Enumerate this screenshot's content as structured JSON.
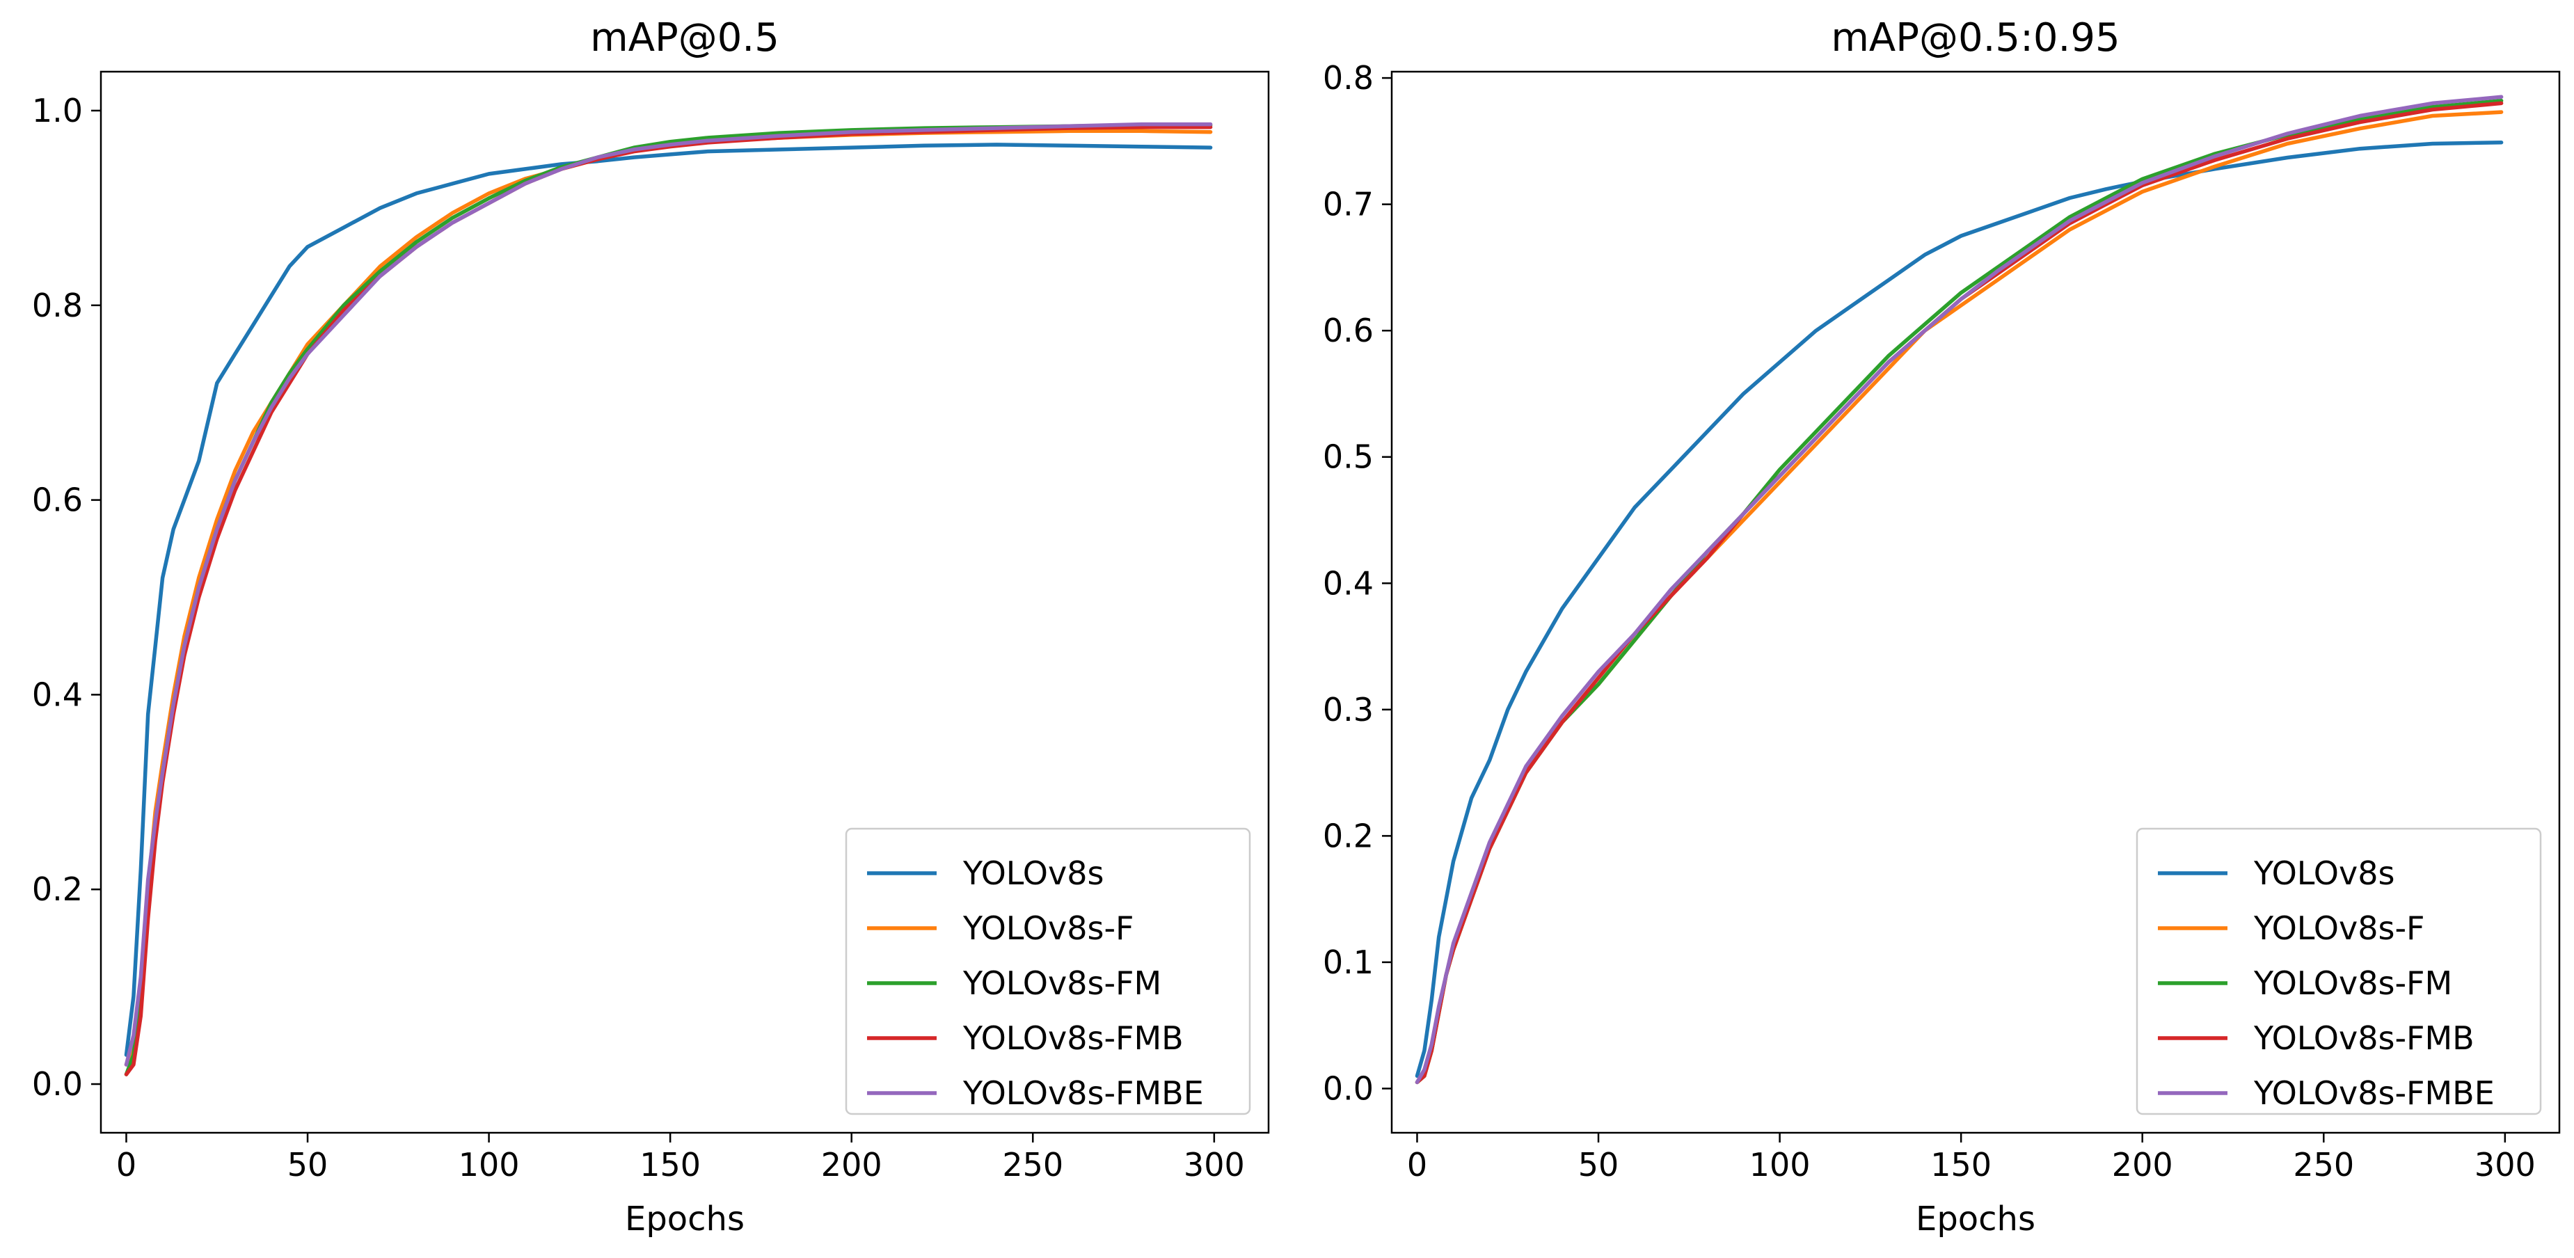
{
  "chart_data": [
    {
      "type": "line",
      "title": "mAP@0.5",
      "xlabel": "Epochs",
      "ylabel": "",
      "xlim": [
        -7,
        315
      ],
      "ylim": [
        -0.05,
        1.04
      ],
      "grid": false,
      "legend": "lower right",
      "xticks": [
        0,
        50,
        100,
        150,
        200,
        250,
        300
      ],
      "yticks": [
        0.0,
        0.2,
        0.4,
        0.6,
        0.8,
        1.0
      ],
      "xtick_labels": [
        "0",
        "50",
        "100",
        "150",
        "200",
        "250",
        "300"
      ],
      "ytick_labels": [
        "0.0",
        "0.2",
        "0.4",
        "0.6",
        "0.8",
        "1.0"
      ],
      "series": [
        {
          "name": "YOLOv8s",
          "color": "#1f77b4",
          "x": [
            0,
            2,
            4,
            6,
            8,
            10,
            13,
            16,
            20,
            25,
            30,
            35,
            40,
            45,
            50,
            60,
            70,
            80,
            90,
            100,
            110,
            120,
            130,
            140,
            150,
            160,
            180,
            200,
            220,
            240,
            260,
            280,
            299
          ],
          "y": [
            0.03,
            0.09,
            0.22,
            0.38,
            0.45,
            0.52,
            0.57,
            0.6,
            0.64,
            0.72,
            0.75,
            0.78,
            0.81,
            0.84,
            0.86,
            0.88,
            0.9,
            0.915,
            0.925,
            0.935,
            0.94,
            0.945,
            0.948,
            0.952,
            0.955,
            0.958,
            0.96,
            0.962,
            0.964,
            0.965,
            0.964,
            0.963,
            0.962
          ]
        },
        {
          "name": "YOLOv8s-F",
          "color": "#ff7f0e",
          "x": [
            0,
            2,
            4,
            6,
            8,
            10,
            13,
            16,
            20,
            25,
            30,
            35,
            40,
            45,
            50,
            60,
            70,
            80,
            90,
            100,
            110,
            120,
            130,
            140,
            150,
            160,
            180,
            200,
            220,
            240,
            260,
            280,
            299
          ],
          "y": [
            0.02,
            0.04,
            0.1,
            0.2,
            0.28,
            0.33,
            0.4,
            0.46,
            0.52,
            0.58,
            0.63,
            0.67,
            0.7,
            0.73,
            0.76,
            0.8,
            0.84,
            0.87,
            0.895,
            0.915,
            0.93,
            0.94,
            0.95,
            0.96,
            0.965,
            0.968,
            0.972,
            0.975,
            0.977,
            0.978,
            0.979,
            0.979,
            0.978
          ]
        },
        {
          "name": "YOLOv8s-FM",
          "color": "#2ca02c",
          "x": [
            0,
            2,
            4,
            6,
            8,
            10,
            13,
            16,
            20,
            25,
            30,
            35,
            40,
            45,
            50,
            60,
            70,
            80,
            90,
            100,
            110,
            120,
            130,
            140,
            150,
            160,
            180,
            200,
            220,
            240,
            260,
            280,
            299
          ],
          "y": [
            0.01,
            0.03,
            0.09,
            0.19,
            0.26,
            0.32,
            0.39,
            0.45,
            0.51,
            0.57,
            0.62,
            0.66,
            0.7,
            0.73,
            0.755,
            0.8,
            0.835,
            0.865,
            0.89,
            0.91,
            0.928,
            0.942,
            0.952,
            0.962,
            0.968,
            0.972,
            0.977,
            0.98,
            0.982,
            0.983,
            0.984,
            0.985,
            0.985
          ]
        },
        {
          "name": "YOLOv8s-FMB",
          "color": "#d62728",
          "x": [
            0,
            2,
            4,
            6,
            8,
            10,
            13,
            16,
            20,
            25,
            30,
            35,
            40,
            45,
            50,
            60,
            70,
            80,
            90,
            100,
            110,
            120,
            130,
            140,
            150,
            160,
            180,
            200,
            220,
            240,
            260,
            280,
            299
          ],
          "y": [
            0.01,
            0.02,
            0.07,
            0.17,
            0.25,
            0.31,
            0.38,
            0.44,
            0.5,
            0.56,
            0.61,
            0.65,
            0.69,
            0.72,
            0.75,
            0.795,
            0.83,
            0.86,
            0.885,
            0.905,
            0.925,
            0.94,
            0.95,
            0.958,
            0.963,
            0.967,
            0.972,
            0.976,
            0.978,
            0.98,
            0.982,
            0.983,
            0.983
          ]
        },
        {
          "name": "YOLOv8s-FMBE",
          "color": "#9467bd",
          "x": [
            0,
            2,
            4,
            6,
            8,
            10,
            13,
            16,
            20,
            25,
            30,
            35,
            40,
            45,
            50,
            60,
            70,
            80,
            90,
            100,
            110,
            120,
            130,
            140,
            150,
            160,
            180,
            200,
            220,
            240,
            260,
            280,
            299
          ],
          "y": [
            0.02,
            0.05,
            0.11,
            0.21,
            0.27,
            0.32,
            0.39,
            0.45,
            0.51,
            0.57,
            0.62,
            0.66,
            0.695,
            0.725,
            0.75,
            0.79,
            0.83,
            0.86,
            0.885,
            0.905,
            0.925,
            0.94,
            0.952,
            0.96,
            0.965,
            0.969,
            0.974,
            0.978,
            0.98,
            0.982,
            0.984,
            0.986,
            0.986
          ]
        }
      ]
    },
    {
      "type": "line",
      "title": "mAP@0.5:0.95",
      "xlabel": "Epochs",
      "ylabel": "",
      "xlim": [
        -7,
        315
      ],
      "ylim": [
        -0.035,
        0.805
      ],
      "grid": false,
      "legend": "lower right",
      "xticks": [
        0,
        50,
        100,
        150,
        200,
        250,
        300
      ],
      "yticks": [
        0.0,
        0.1,
        0.2,
        0.3,
        0.4,
        0.5,
        0.6,
        0.7,
        0.8
      ],
      "xtick_labels": [
        "0",
        "50",
        "100",
        "150",
        "200",
        "250",
        "300"
      ],
      "ytick_labels": [
        "0.0",
        "0.1",
        "0.2",
        "0.3",
        "0.4",
        "0.5",
        "0.6",
        "0.7",
        "0.8"
      ],
      "series": [
        {
          "name": "YOLOv8s",
          "color": "#1f77b4",
          "x": [
            0,
            2,
            4,
            6,
            8,
            10,
            15,
            20,
            25,
            30,
            40,
            50,
            60,
            70,
            80,
            90,
            100,
            110,
            120,
            130,
            140,
            150,
            160,
            170,
            180,
            190,
            200,
            220,
            240,
            260,
            280,
            299
          ],
          "y": [
            0.01,
            0.03,
            0.07,
            0.12,
            0.15,
            0.18,
            0.23,
            0.26,
            0.3,
            0.33,
            0.38,
            0.42,
            0.46,
            0.49,
            0.52,
            0.55,
            0.575,
            0.6,
            0.62,
            0.64,
            0.66,
            0.675,
            0.685,
            0.695,
            0.705,
            0.712,
            0.718,
            0.728,
            0.737,
            0.744,
            0.748,
            0.749
          ]
        },
        {
          "name": "YOLOv8s-F",
          "color": "#ff7f0e",
          "x": [
            0,
            2,
            4,
            6,
            8,
            10,
            15,
            20,
            25,
            30,
            40,
            50,
            60,
            70,
            80,
            90,
            100,
            110,
            120,
            130,
            140,
            150,
            160,
            170,
            180,
            190,
            200,
            220,
            240,
            260,
            280,
            299
          ],
          "y": [
            0.005,
            0.01,
            0.03,
            0.06,
            0.09,
            0.11,
            0.15,
            0.19,
            0.22,
            0.25,
            0.29,
            0.32,
            0.355,
            0.39,
            0.42,
            0.45,
            0.48,
            0.51,
            0.54,
            0.57,
            0.6,
            0.62,
            0.64,
            0.66,
            0.68,
            0.695,
            0.71,
            0.73,
            0.748,
            0.76,
            0.77,
            0.773
          ]
        },
        {
          "name": "YOLOv8s-FM",
          "color": "#2ca02c",
          "x": [
            0,
            2,
            4,
            6,
            8,
            10,
            15,
            20,
            25,
            30,
            40,
            50,
            60,
            70,
            80,
            90,
            100,
            110,
            120,
            130,
            140,
            150,
            160,
            170,
            180,
            190,
            200,
            220,
            240,
            260,
            280,
            299
          ],
          "y": [
            0.005,
            0.01,
            0.03,
            0.06,
            0.09,
            0.11,
            0.15,
            0.19,
            0.22,
            0.25,
            0.29,
            0.32,
            0.355,
            0.39,
            0.425,
            0.455,
            0.49,
            0.52,
            0.55,
            0.58,
            0.605,
            0.63,
            0.65,
            0.67,
            0.69,
            0.705,
            0.72,
            0.74,
            0.755,
            0.767,
            0.777,
            0.782
          ]
        },
        {
          "name": "YOLOv8s-FMB",
          "color": "#d62728",
          "x": [
            0,
            2,
            4,
            6,
            8,
            10,
            15,
            20,
            25,
            30,
            40,
            50,
            60,
            70,
            80,
            90,
            100,
            110,
            120,
            130,
            140,
            150,
            160,
            170,
            180,
            190,
            200,
            220,
            240,
            260,
            280,
            299
          ],
          "y": [
            0.005,
            0.01,
            0.03,
            0.06,
            0.09,
            0.11,
            0.15,
            0.19,
            0.22,
            0.25,
            0.29,
            0.325,
            0.36,
            0.39,
            0.42,
            0.455,
            0.485,
            0.515,
            0.545,
            0.575,
            0.6,
            0.625,
            0.645,
            0.665,
            0.685,
            0.7,
            0.715,
            0.735,
            0.752,
            0.765,
            0.775,
            0.78
          ]
        },
        {
          "name": "YOLOv8s-FMBE",
          "color": "#9467bd",
          "x": [
            0,
            2,
            4,
            6,
            8,
            10,
            15,
            20,
            25,
            30,
            40,
            50,
            60,
            70,
            80,
            90,
            100,
            110,
            120,
            130,
            140,
            150,
            160,
            170,
            180,
            190,
            200,
            220,
            240,
            260,
            280,
            299
          ],
          "y": [
            0.005,
            0.015,
            0.035,
            0.065,
            0.09,
            0.115,
            0.155,
            0.195,
            0.225,
            0.255,
            0.295,
            0.33,
            0.36,
            0.395,
            0.425,
            0.455,
            0.485,
            0.515,
            0.545,
            0.575,
            0.6,
            0.625,
            0.647,
            0.667,
            0.687,
            0.702,
            0.717,
            0.738,
            0.756,
            0.77,
            0.78,
            0.785
          ]
        }
      ]
    }
  ]
}
